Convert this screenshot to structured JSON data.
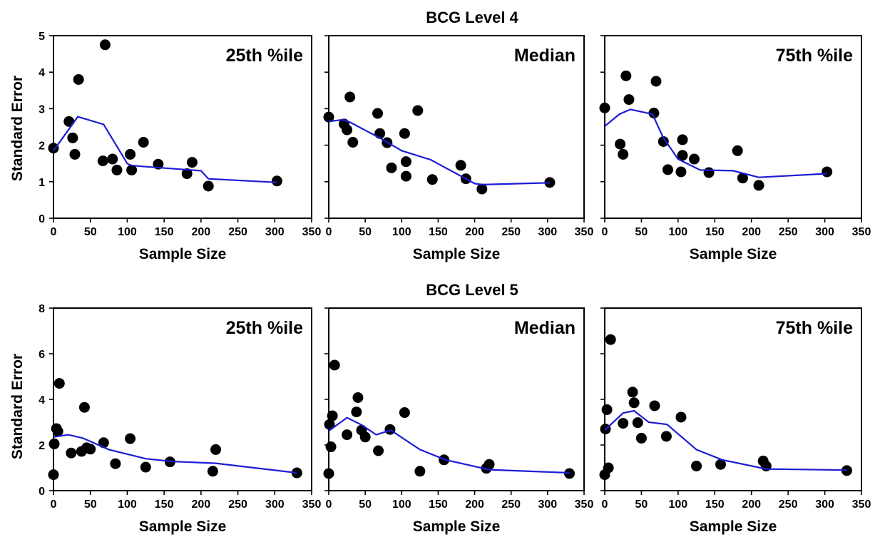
{
  "chart_data": [
    {
      "type": "scatter",
      "group": "BCG Level 4",
      "panel_label": "25th %ile",
      "xlabel": "Sample Size",
      "ylabel": "Standard Error",
      "xlim": [
        0,
        350
      ],
      "ylim": [
        0,
        5
      ],
      "xticks": [
        "0",
        "50",
        "100",
        "150",
        "200",
        "250",
        "300",
        "350"
      ],
      "yticks": [
        "0",
        "1",
        "2",
        "3",
        "4",
        "5"
      ],
      "points": [
        [
          0,
          1.92
        ],
        [
          21,
          2.65
        ],
        [
          26,
          2.2
        ],
        [
          29,
          1.75
        ],
        [
          34,
          3.8
        ],
        [
          67,
          1.57
        ],
        [
          70,
          4.75
        ],
        [
          80,
          1.62
        ],
        [
          86,
          1.32
        ],
        [
          104,
          1.75
        ],
        [
          106,
          1.32
        ],
        [
          122,
          2.08
        ],
        [
          142,
          1.48
        ],
        [
          181,
          1.22
        ],
        [
          188,
          1.53
        ],
        [
          210,
          0.88
        ],
        [
          303,
          1.02
        ]
      ],
      "trend": [
        [
          0,
          1.85
        ],
        [
          33,
          2.78
        ],
        [
          68,
          2.57
        ],
        [
          100,
          1.5
        ],
        [
          105,
          1.45
        ],
        [
          120,
          1.42
        ],
        [
          200,
          1.3
        ],
        [
          210,
          1.08
        ],
        [
          303,
          0.98
        ]
      ],
      "trend_color": "#1c1cd6",
      "marker_color": "#000000"
    },
    {
      "type": "scatter",
      "group": "BCG Level 4",
      "panel_label": "Median",
      "xlabel": "Sample Size",
      "ylabel": "",
      "xlim": [
        0,
        350
      ],
      "ylim": [
        0,
        5
      ],
      "xticks": [
        "0",
        "50",
        "100",
        "150",
        "200",
        "250",
        "300",
        "350"
      ],
      "yticks": [],
      "points": [
        [
          0,
          2.77
        ],
        [
          21,
          2.58
        ],
        [
          25,
          2.42
        ],
        [
          29,
          3.32
        ],
        [
          33,
          2.08
        ],
        [
          67,
          2.87
        ],
        [
          70,
          2.32
        ],
        [
          80,
          2.07
        ],
        [
          86,
          1.38
        ],
        [
          104,
          2.32
        ],
        [
          106,
          1.55
        ],
        [
          106,
          1.15
        ],
        [
          122,
          2.95
        ],
        [
          142,
          1.06
        ],
        [
          181,
          1.45
        ],
        [
          188,
          1.08
        ],
        [
          210,
          0.8
        ],
        [
          303,
          0.98
        ]
      ],
      "trend": [
        [
          0,
          2.65
        ],
        [
          20,
          2.7
        ],
        [
          30,
          2.62
        ],
        [
          70,
          2.2
        ],
        [
          100,
          1.85
        ],
        [
          140,
          1.6
        ],
        [
          200,
          0.95
        ],
        [
          210,
          0.92
        ],
        [
          303,
          0.97
        ]
      ],
      "trend_color": "#1c1cd6",
      "marker_color": "#000000"
    },
    {
      "type": "scatter",
      "group": "BCG Level 4",
      "panel_label": "75th %ile",
      "xlabel": "Sample Size",
      "ylabel": "",
      "xlim": [
        0,
        350
      ],
      "ylim": [
        0,
        5
      ],
      "xticks": [
        "0",
        "50",
        "100",
        "150",
        "200",
        "250",
        "300",
        "350"
      ],
      "yticks": [],
      "points": [
        [
          0,
          3.02
        ],
        [
          21,
          2.03
        ],
        [
          25,
          1.75
        ],
        [
          29,
          3.9
        ],
        [
          33,
          3.25
        ],
        [
          67,
          2.88
        ],
        [
          70,
          3.75
        ],
        [
          80,
          2.1
        ],
        [
          86,
          1.33
        ],
        [
          104,
          1.27
        ],
        [
          106,
          2.15
        ],
        [
          106,
          1.72
        ],
        [
          122,
          1.62
        ],
        [
          142,
          1.25
        ],
        [
          181,
          1.85
        ],
        [
          188,
          1.1
        ],
        [
          210,
          0.9
        ],
        [
          303,
          1.27
        ]
      ],
      "trend": [
        [
          0,
          2.52
        ],
        [
          20,
          2.85
        ],
        [
          35,
          2.98
        ],
        [
          65,
          2.85
        ],
        [
          80,
          2.2
        ],
        [
          100,
          1.62
        ],
        [
          130,
          1.32
        ],
        [
          175,
          1.3
        ],
        [
          210,
          1.12
        ],
        [
          303,
          1.22
        ]
      ],
      "trend_color": "#1c1cd6",
      "marker_color": "#000000"
    },
    {
      "type": "scatter",
      "group": "BCG Level 5",
      "panel_label": "25th %ile",
      "xlabel": "Sample Size",
      "ylabel": "Standard Error",
      "xlim": [
        0,
        350
      ],
      "ylim": [
        0,
        8
      ],
      "xticks": [
        "0",
        "50",
        "100",
        "150",
        "200",
        "250",
        "300",
        "350"
      ],
      "yticks": [
        "0",
        "2",
        "4",
        "6",
        "8"
      ],
      "points": [
        [
          0,
          0.7
        ],
        [
          1,
          2.05
        ],
        [
          4,
          2.72
        ],
        [
          6,
          2.6
        ],
        [
          8,
          4.7
        ],
        [
          24,
          1.65
        ],
        [
          38,
          1.72
        ],
        [
          42,
          3.65
        ],
        [
          45,
          1.88
        ],
        [
          50,
          1.82
        ],
        [
          68,
          2.1
        ],
        [
          84,
          1.18
        ],
        [
          104,
          2.28
        ],
        [
          125,
          1.03
        ],
        [
          158,
          1.26
        ],
        [
          216,
          0.85
        ],
        [
          220,
          1.8
        ],
        [
          330,
          0.78
        ]
      ],
      "trend": [
        [
          0,
          2.35
        ],
        [
          20,
          2.45
        ],
        [
          40,
          2.3
        ],
        [
          75,
          1.8
        ],
        [
          125,
          1.4
        ],
        [
          160,
          1.28
        ],
        [
          220,
          1.2
        ],
        [
          330,
          0.78
        ]
      ],
      "trend_color": "#1c1cd6",
      "marker_color": "#000000"
    },
    {
      "type": "scatter",
      "group": "BCG Level 5",
      "panel_label": "Median",
      "xlabel": "Sample Size",
      "ylabel": "",
      "xlim": [
        0,
        350
      ],
      "ylim": [
        0,
        8
      ],
      "xticks": [
        "0",
        "50",
        "100",
        "150",
        "200",
        "250",
        "300",
        "350"
      ],
      "yticks": [],
      "points": [
        [
          0,
          0.75
        ],
        [
          1,
          2.9
        ],
        [
          3,
          1.92
        ],
        [
          5,
          3.28
        ],
        [
          8,
          5.5
        ],
        [
          25,
          2.45
        ],
        [
          38,
          3.45
        ],
        [
          40,
          4.08
        ],
        [
          45,
          2.65
        ],
        [
          50,
          2.35
        ],
        [
          68,
          1.75
        ],
        [
          84,
          2.68
        ],
        [
          104,
          3.42
        ],
        [
          125,
          0.85
        ],
        [
          158,
          1.35
        ],
        [
          216,
          0.98
        ],
        [
          220,
          1.15
        ],
        [
          330,
          0.75
        ]
      ],
      "trend": [
        [
          0,
          2.62
        ],
        [
          25,
          3.2
        ],
        [
          45,
          2.88
        ],
        [
          65,
          2.45
        ],
        [
          85,
          2.65
        ],
        [
          125,
          1.8
        ],
        [
          160,
          1.35
        ],
        [
          220,
          0.92
        ],
        [
          330,
          0.78
        ]
      ],
      "trend_color": "#1c1cd6",
      "marker_color": "#000000"
    },
    {
      "type": "scatter",
      "group": "BCG Level 5",
      "panel_label": "75th %ile",
      "xlabel": "Sample Size",
      "ylabel": "",
      "xlim": [
        0,
        350
      ],
      "ylim": [
        0,
        8
      ],
      "xticks": [
        "0",
        "50",
        "100",
        "150",
        "200",
        "250",
        "300",
        "350"
      ],
      "yticks": [],
      "points": [
        [
          0,
          0.7
        ],
        [
          1,
          2.7
        ],
        [
          3,
          3.55
        ],
        [
          5,
          1.0
        ],
        [
          8,
          6.62
        ],
        [
          25,
          2.95
        ],
        [
          38,
          4.32
        ],
        [
          40,
          3.85
        ],
        [
          45,
          2.98
        ],
        [
          50,
          2.3
        ],
        [
          68,
          3.72
        ],
        [
          84,
          2.38
        ],
        [
          104,
          3.22
        ],
        [
          125,
          1.08
        ],
        [
          158,
          1.15
        ],
        [
          216,
          1.3
        ],
        [
          220,
          1.08
        ],
        [
          330,
          0.88
        ]
      ],
      "trend": [
        [
          0,
          2.65
        ],
        [
          25,
          3.4
        ],
        [
          40,
          3.5
        ],
        [
          60,
          3.0
        ],
        [
          85,
          2.9
        ],
        [
          125,
          1.8
        ],
        [
          160,
          1.35
        ],
        [
          220,
          0.95
        ],
        [
          330,
          0.9
        ]
      ],
      "trend_color": "#1c1cd6",
      "marker_color": "#000000"
    }
  ]
}
